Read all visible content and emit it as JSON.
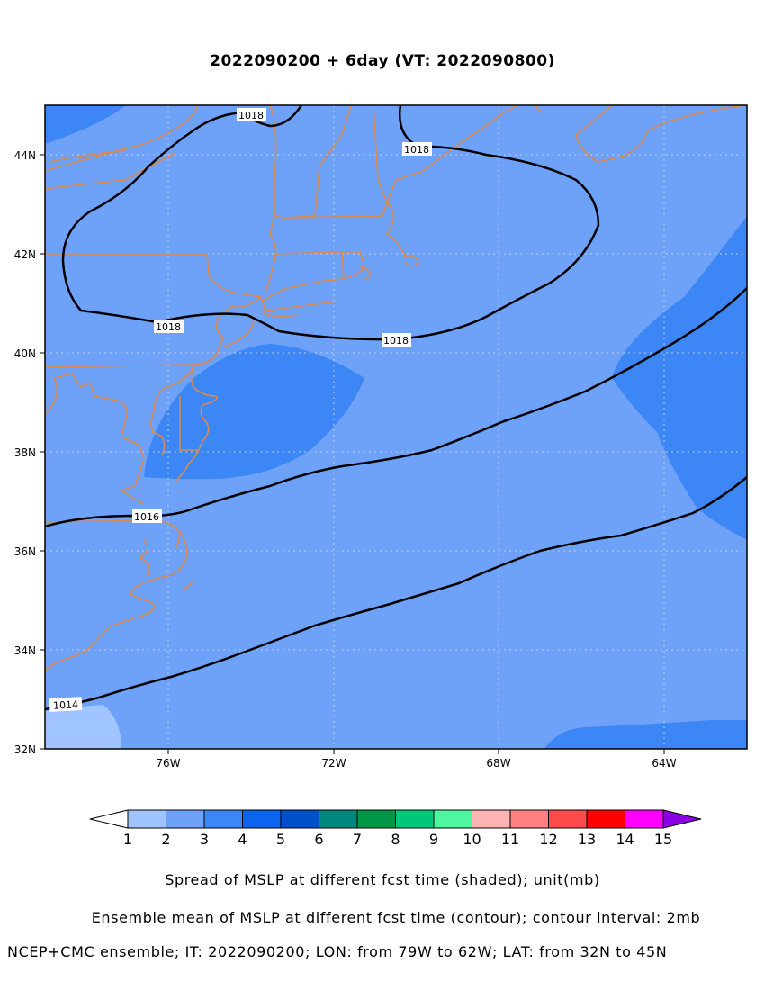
{
  "title": "2022090200 + 6day (VT: 2022090800)",
  "map": {
    "x_axis_labels": [
      "76W",
      "72W",
      "68W",
      "64W"
    ],
    "y_axis_labels": [
      "44N",
      "42N",
      "40N",
      "38N",
      "36N",
      "34N",
      "32N"
    ],
    "lon_range": [
      -79,
      -62
    ],
    "lat_range": [
      32,
      45
    ],
    "contour_labels": [
      "1018",
      "1018",
      "1018",
      "1018",
      "1016",
      "1014"
    ],
    "coastline_color": "#d9894e",
    "contour_color": "#000000"
  },
  "colorbar": {
    "labels": [
      "1",
      "2",
      "3",
      "4",
      "5",
      "6",
      "7",
      "8",
      "9",
      "10",
      "11",
      "12",
      "13",
      "14",
      "15"
    ],
    "colors": [
      "#a0c4ff",
      "#6ea2f8",
      "#3c87f5",
      "#0a64ee",
      "#0050c8",
      "#00877e",
      "#009646",
      "#00c878",
      "#50f5a0",
      "#ffb4b4",
      "#ff8080",
      "#ff4b4b",
      "#ff0000",
      "#ff00ff",
      "#8c00e6"
    ]
  },
  "captions": {
    "line1": "Spread of MSLP at different fcst time (shaded); unit(mb)",
    "line2": "Ensemble mean of MSLP at different fcst time (contour); contour interval: 2mb",
    "line3": "NCEP+CMC ensemble; IT: 2022090200; LON: from 79W to 62W; LAT: from 32N to 45N"
  }
}
